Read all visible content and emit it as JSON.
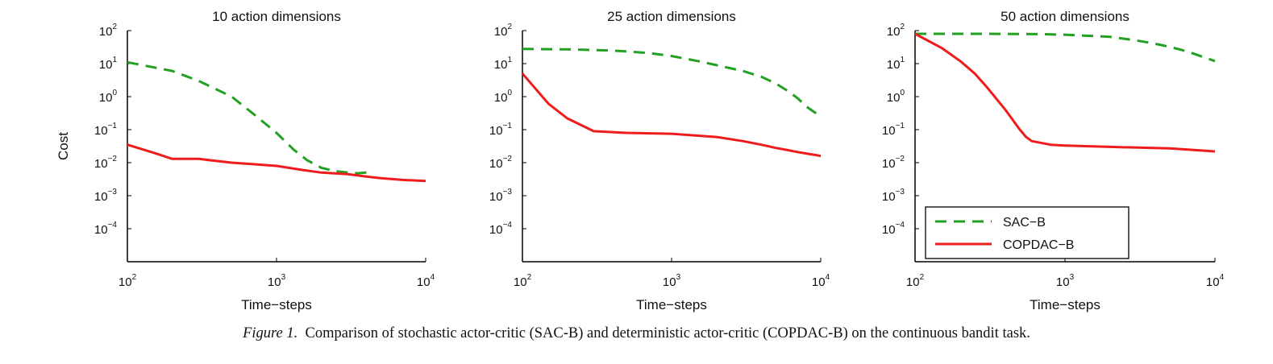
{
  "caption": {
    "label": "Figure 1.",
    "text": "Comparison of stochastic actor-critic (SAC-B) and deterministic actor-critic (COPDAC-B) on the continuous bandit task."
  },
  "chart_data": [
    {
      "type": "line",
      "title": "10 action dimensions",
      "xlabel": "Time−steps",
      "ylabel": "Cost",
      "xscale": "log",
      "yscale": "log",
      "xlim": [
        100,
        10000
      ],
      "ylim": [
        1e-05,
        100
      ],
      "x_ticks": [
        "10",
        "10",
        "10"
      ],
      "x_tick_exponents": [
        "2",
        "3",
        "4"
      ],
      "y_ticks": [
        "10",
        "10",
        "10",
        "10",
        "10",
        "10",
        "10"
      ],
      "y_tick_exponents": [
        "2",
        "1",
        "0",
        "−1",
        "−2",
        "−3",
        "−4"
      ],
      "legend": null,
      "series": [
        {
          "name": "SAC−B",
          "color": "#22a022",
          "style": "dashed",
          "x": [
            100,
            200,
            300,
            500,
            700,
            1000,
            1300,
            1600,
            2000,
            2500,
            3000,
            3500,
            4000
          ],
          "y": [
            11,
            6,
            3,
            1,
            0.3,
            0.08,
            0.025,
            0.012,
            0.007,
            0.0055,
            0.005,
            0.0048,
            0.005
          ]
        },
        {
          "name": "COPDAC−B",
          "color": "#ee1c1c",
          "style": "solid",
          "x": [
            100,
            150,
            200,
            300,
            500,
            700,
            1000,
            1500,
            2000,
            3000,
            4000,
            5000,
            7000,
            10000
          ],
          "y": [
            0.035,
            0.02,
            0.013,
            0.013,
            0.01,
            0.009,
            0.008,
            0.006,
            0.005,
            0.0045,
            0.0038,
            0.0034,
            0.003,
            0.0028
          ]
        }
      ]
    },
    {
      "type": "line",
      "title": "25 action dimensions",
      "xlabel": "Time−steps",
      "ylabel": "",
      "xscale": "log",
      "yscale": "log",
      "xlim": [
        100,
        10000
      ],
      "ylim": [
        1e-05,
        100
      ],
      "x_ticks": [
        "10",
        "10",
        "10"
      ],
      "x_tick_exponents": [
        "2",
        "3",
        "4"
      ],
      "y_ticks": [
        "10",
        "10",
        "10",
        "10",
        "10",
        "10",
        "10"
      ],
      "y_tick_exponents": [
        "2",
        "1",
        "0",
        "−1",
        "−2",
        "−3",
        "−4"
      ],
      "legend": null,
      "series": [
        {
          "name": "SAC−B",
          "color": "#22a022",
          "style": "dashed",
          "x": [
            100,
            200,
            400,
            700,
            1000,
            1500,
            2000,
            3000,
            4000,
            5000,
            6000,
            7000,
            8000,
            10000
          ],
          "y": [
            28,
            27,
            25,
            21,
            17,
            12,
            9,
            6,
            4,
            2.5,
            1.5,
            0.9,
            0.5,
            0.25
          ]
        },
        {
          "name": "COPDAC−B",
          "color": "#ee1c1c",
          "style": "solid",
          "x": [
            100,
            150,
            200,
            300,
            500,
            1000,
            2000,
            3000,
            4000,
            5000,
            6000,
            7000,
            8000,
            10000
          ],
          "y": [
            5,
            0.6,
            0.22,
            0.09,
            0.08,
            0.075,
            0.06,
            0.045,
            0.035,
            0.028,
            0.024,
            0.021,
            0.019,
            0.016
          ]
        }
      ]
    },
    {
      "type": "line",
      "title": "50 action dimensions",
      "xlabel": "Time−steps",
      "ylabel": "",
      "xscale": "log",
      "yscale": "log",
      "xlim": [
        100,
        10000
      ],
      "ylim": [
        1e-05,
        100
      ],
      "x_ticks": [
        "10",
        "10",
        "10"
      ],
      "x_tick_exponents": [
        "2",
        "3",
        "4"
      ],
      "y_ticks": [
        "10",
        "10",
        "10",
        "10",
        "10",
        "10",
        "10"
      ],
      "y_tick_exponents": [
        "2",
        "1",
        "0",
        "−1",
        "−2",
        "−3",
        "−4"
      ],
      "legend": "lower-left",
      "series": [
        {
          "name": "SAC−B",
          "color": "#22a022",
          "style": "dashed",
          "x": [
            100,
            300,
            700,
            1000,
            2000,
            3000,
            4000,
            5000,
            6000,
            7000,
            8000,
            9000,
            10000
          ],
          "y": [
            80,
            80,
            78,
            75,
            65,
            50,
            40,
            32,
            26,
            21,
            17,
            14,
            12
          ]
        },
        {
          "name": "COPDAC−B",
          "color": "#ee1c1c",
          "style": "solid",
          "x": [
            100,
            150,
            200,
            250,
            300,
            400,
            500,
            550,
            600,
            800,
            1000,
            2000,
            5000,
            10000
          ],
          "y": [
            80,
            30,
            12,
            5,
            2,
            0.4,
            0.1,
            0.06,
            0.045,
            0.035,
            0.033,
            0.03,
            0.027,
            0.022
          ]
        }
      ]
    }
  ]
}
